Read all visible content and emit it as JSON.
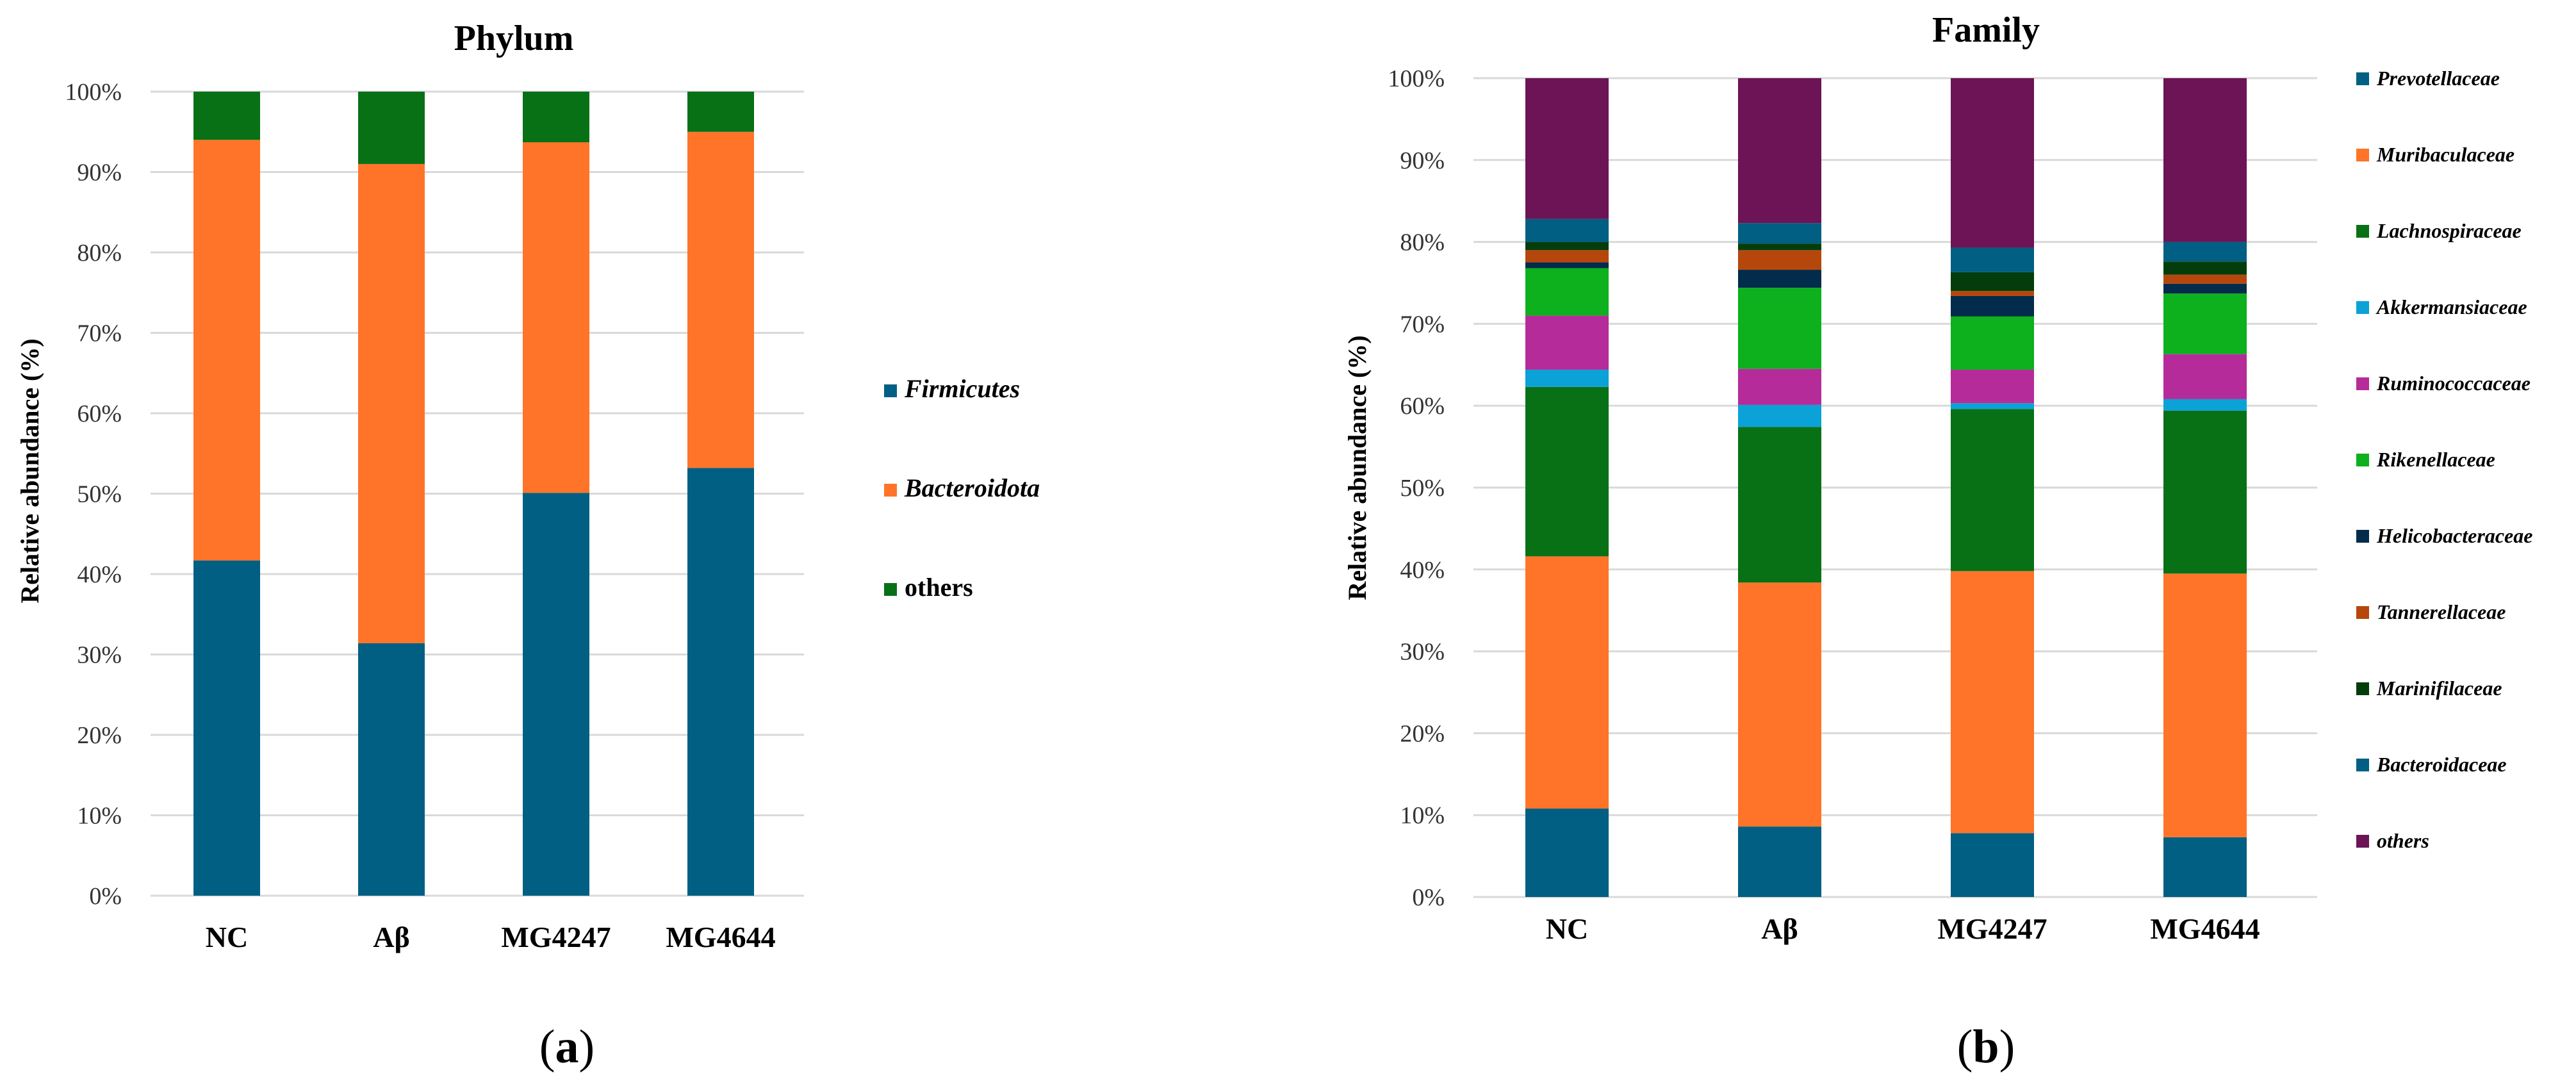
{
  "colors": {
    "Firmicutes": "#005f83",
    "Bacteroidota": "#ff7428",
    "others_phylum": "#087116",
    "Prevotellaceae": "#005f83",
    "Muribaculaceae": "#ff7428",
    "Lachnospiraceae": "#087116",
    "Akkermansiaceae": "#0ba2d8",
    "Ruminococcaceae": "#b62b9a",
    "Rikenellaceae": "#0db01d",
    "Helicobacteraceae": "#032b4b",
    "Tannerellaceae": "#b6470c",
    "Marinifilaceae": "#043d0b",
    "Bacteroidaceae": "#005f83",
    "others_family": "#6c1456"
  },
  "panel_labels": {
    "a": {
      "open": "(",
      "letter": "a",
      "close": ")"
    },
    "b": {
      "open": "(",
      "letter": "b",
      "close": ")"
    }
  },
  "chart_data": [
    {
      "type": "bar",
      "stacked": true,
      "title": "Phylum",
      "xlabel": "",
      "ylabel": "Relative abundance (%)",
      "ylim": [
        0,
        100
      ],
      "yticks": [
        "0%",
        "10%",
        "20%",
        "30%",
        "40%",
        "50%",
        "60%",
        "70%",
        "80%",
        "90%",
        "100%"
      ],
      "categories": [
        "NC",
        "Aβ",
        "MG4247",
        "MG4644"
      ],
      "legend_position": "right",
      "series": [
        {
          "name": "Firmicutes",
          "italic": true,
          "color_key": "Firmicutes",
          "values": [
            41.7,
            31.4,
            50.1,
            53.2
          ]
        },
        {
          "name": "Bacteroidota",
          "italic": true,
          "color_key": "Bacteroidota",
          "values": [
            52.3,
            59.6,
            43.6,
            41.8
          ]
        },
        {
          "name": "others",
          "italic": false,
          "color_key": "others_phylum",
          "values": [
            6.0,
            9.0,
            6.3,
            5.0
          ]
        }
      ]
    },
    {
      "type": "bar",
      "stacked": true,
      "title": "Family",
      "xlabel": "",
      "ylabel": "Relative abundance (%)",
      "ylim": [
        0,
        100
      ],
      "yticks": [
        "0%",
        "10%",
        "20%",
        "30%",
        "40%",
        "50%",
        "60%",
        "70%",
        "80%",
        "90%",
        "100%"
      ],
      "categories": [
        "NC",
        "Aβ",
        "MG4247",
        "MG4644"
      ],
      "legend_position": "right",
      "legend_order": [
        "Prevotellaceae",
        "Muribaculaceae",
        "Lachnospiraceae",
        "Akkermansiaceae",
        "Ruminococcaceae",
        "Rikenellaceae",
        "Helicobacteraceae",
        "Tannerellaceae",
        "Marinifilaceae",
        "Bacteroidaceae",
        "others"
      ],
      "series": [
        {
          "name": "Prevotellaceae",
          "color_key": "Prevotellaceae",
          "values": [
            10.8,
            8.6,
            7.8,
            7.3
          ]
        },
        {
          "name": "Muribaculaceae",
          "color_key": "Muribaculaceae",
          "values": [
            30.8,
            29.8,
            32.0,
            32.2
          ]
        },
        {
          "name": "Lachnospiraceae",
          "color_key": "Lachnospiraceae",
          "values": [
            20.7,
            19.0,
            19.8,
            19.9
          ]
        },
        {
          "name": "Akkermansiaceae",
          "color_key": "Akkermansiaceae",
          "values": [
            2.1,
            2.7,
            0.7,
            1.4
          ]
        },
        {
          "name": "Ruminococcaceae",
          "color_key": "Ruminococcaceae",
          "values": [
            6.6,
            4.4,
            4.1,
            5.5
          ]
        },
        {
          "name": "Rikenellaceae",
          "color_key": "Rikenellaceae",
          "values": [
            5.8,
            9.9,
            6.5,
            7.4
          ]
        },
        {
          "name": "Helicobacteraceae",
          "color_key": "Helicobacteraceae",
          "values": [
            0.7,
            2.2,
            2.5,
            1.2
          ]
        },
        {
          "name": "Tannerellaceae",
          "color_key": "Tannerellaceae",
          "values": [
            1.5,
            2.4,
            0.6,
            1.1
          ]
        },
        {
          "name": "Marinifilaceae",
          "color_key": "Marinifilaceae",
          "values": [
            1.0,
            0.8,
            2.3,
            1.6
          ]
        },
        {
          "name": "Bacteroidaceae",
          "color_key": "Bacteroidaceae",
          "values": [
            2.8,
            2.5,
            3.0,
            2.4
          ]
        },
        {
          "name": "others",
          "color_key": "others_family",
          "values": [
            17.2,
            17.7,
            20.7,
            20.0
          ]
        }
      ]
    }
  ]
}
